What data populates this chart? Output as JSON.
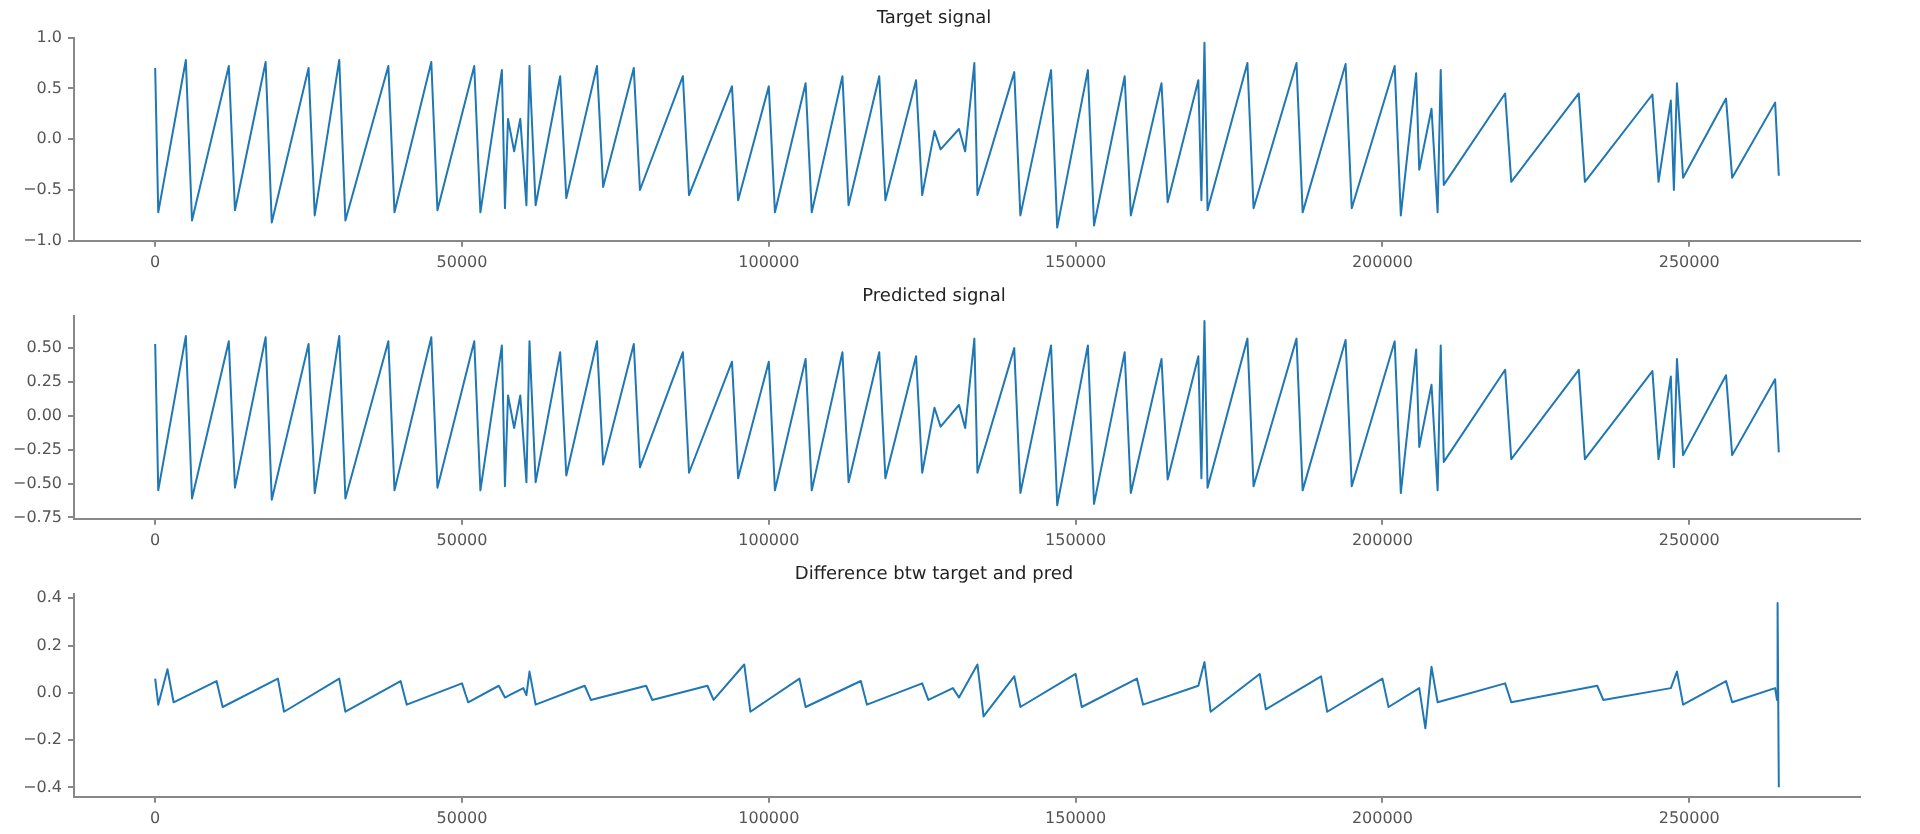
{
  "chart_data": [
    {
      "type": "line",
      "title": "Target signal",
      "color": "#1f77b4",
      "xlim": [
        -13230,
        277830
      ],
      "xticks": [
        0,
        50000,
        100000,
        150000,
        200000,
        250000
      ],
      "ylim": [
        -1.0,
        1.0
      ],
      "yticks": [
        {
          "value": -1.0,
          "label": "−1.0"
        },
        {
          "value": -0.5,
          "label": "−0.5"
        },
        {
          "value": 0,
          "label": "0.0"
        },
        {
          "value": 0.5,
          "label": "0.5"
        },
        {
          "value": 1.0,
          "label": "1.0"
        }
      ],
      "x": [
        0,
        500,
        5000,
        6000,
        12000,
        13000,
        18000,
        19000,
        25000,
        26000,
        30000,
        31000,
        38000,
        39000,
        45000,
        46000,
        52000,
        53000,
        56500,
        57000,
        57500,
        58500,
        59500,
        60500,
        61000,
        62000,
        66000,
        67000,
        72000,
        73000,
        78000,
        79000,
        86000,
        87000,
        94000,
        95000,
        100000,
        101000,
        106000,
        107000,
        112000,
        113000,
        118000,
        119000,
        124000,
        125000,
        127000,
        128000,
        131000,
        132000,
        133500,
        134000,
        140000,
        141000,
        146000,
        147000,
        152000,
        153000,
        158000,
        159000,
        164000,
        165000,
        170000,
        170500,
        171000,
        171500,
        178000,
        179000,
        186000,
        187000,
        194000,
        195000,
        202000,
        203000,
        205500,
        206000,
        208000,
        209000,
        209500,
        210000,
        220000,
        221000,
        232000,
        233000,
        244000,
        245000,
        247000,
        247500,
        248000,
        249000,
        256000,
        257000,
        264000,
        264600
      ],
      "values": [
        0.7,
        -0.72,
        0.78,
        -0.8,
        0.72,
        -0.7,
        0.76,
        -0.82,
        0.7,
        -0.75,
        0.78,
        -0.8,
        0.72,
        -0.72,
        0.76,
        -0.7,
        0.72,
        -0.72,
        0.68,
        -0.68,
        0.2,
        -0.12,
        0.2,
        -0.65,
        0.72,
        -0.65,
        0.62,
        -0.58,
        0.72,
        -0.47,
        0.7,
        -0.5,
        0.62,
        -0.55,
        0.52,
        -0.6,
        0.52,
        -0.72,
        0.55,
        -0.72,
        0.62,
        -0.65,
        0.62,
        -0.6,
        0.58,
        -0.55,
        0.08,
        -0.1,
        0.1,
        -0.12,
        0.75,
        -0.55,
        0.66,
        -0.75,
        0.68,
        -0.87,
        0.68,
        -0.85,
        0.62,
        -0.75,
        0.55,
        -0.62,
        0.58,
        -0.6,
        0.95,
        -0.7,
        0.75,
        -0.68,
        0.75,
        -0.72,
        0.74,
        -0.68,
        0.72,
        -0.75,
        0.65,
        -0.3,
        0.3,
        -0.72,
        0.68,
        -0.45,
        0.45,
        -0.42,
        0.45,
        -0.42,
        0.44,
        -0.42,
        0.38,
        -0.5,
        0.55,
        -0.38,
        0.4,
        -0.38,
        0.36,
        -0.36
      ]
    },
    {
      "type": "line",
      "title": "Predicted signal",
      "color": "#1f77b4",
      "xlim": [
        -13230,
        277830
      ],
      "xticks": [
        0,
        50000,
        100000,
        150000,
        200000,
        250000
      ],
      "ylim": [
        -0.76,
        0.74
      ],
      "yticks": [
        {
          "value": -0.75,
          "label": "−0.75"
        },
        {
          "value": -0.5,
          "label": "−0.50"
        },
        {
          "value": -0.25,
          "label": "−0.25"
        },
        {
          "value": 0,
          "label": "0.00"
        },
        {
          "value": 0.25,
          "label": "0.25"
        },
        {
          "value": 0.5,
          "label": "0.50"
        }
      ],
      "x": [
        0,
        500,
        5000,
        6000,
        12000,
        13000,
        18000,
        19000,
        25000,
        26000,
        30000,
        31000,
        38000,
        39000,
        45000,
        46000,
        52000,
        53000,
        56500,
        57000,
        57500,
        58500,
        59500,
        60500,
        61000,
        62000,
        66000,
        67000,
        72000,
        73000,
        78000,
        79000,
        86000,
        87000,
        94000,
        95000,
        100000,
        101000,
        106000,
        107000,
        112000,
        113000,
        118000,
        119000,
        124000,
        125000,
        127000,
        128000,
        131000,
        132000,
        133500,
        134000,
        140000,
        141000,
        146000,
        147000,
        152000,
        153000,
        158000,
        159000,
        164000,
        165000,
        170000,
        170500,
        171000,
        171500,
        178000,
        179000,
        186000,
        187000,
        194000,
        195000,
        202000,
        203000,
        205500,
        206000,
        208000,
        209000,
        209500,
        210000,
        220000,
        221000,
        232000,
        233000,
        244000,
        245000,
        247000,
        247500,
        248000,
        249000,
        256000,
        257000,
        264000,
        264600
      ],
      "values": [
        0.53,
        -0.55,
        0.59,
        -0.61,
        0.55,
        -0.53,
        0.58,
        -0.62,
        0.53,
        -0.57,
        0.59,
        -0.61,
        0.55,
        -0.55,
        0.58,
        -0.53,
        0.55,
        -0.55,
        0.52,
        -0.52,
        0.15,
        -0.09,
        0.15,
        -0.49,
        0.55,
        -0.49,
        0.47,
        -0.44,
        0.55,
        -0.36,
        0.53,
        -0.38,
        0.47,
        -0.42,
        0.4,
        -0.46,
        0.4,
        -0.55,
        0.42,
        -0.55,
        0.47,
        -0.49,
        0.47,
        -0.46,
        0.44,
        -0.42,
        0.06,
        -0.08,
        0.08,
        -0.09,
        0.57,
        -0.42,
        0.5,
        -0.57,
        0.52,
        -0.66,
        0.52,
        -0.65,
        0.47,
        -0.57,
        0.42,
        -0.47,
        0.44,
        -0.46,
        0.7,
        -0.53,
        0.57,
        -0.52,
        0.57,
        -0.55,
        0.56,
        -0.52,
        0.55,
        -0.57,
        0.49,
        -0.23,
        0.23,
        -0.55,
        0.52,
        -0.34,
        0.34,
        -0.32,
        0.34,
        -0.32,
        0.33,
        -0.32,
        0.29,
        -0.38,
        0.42,
        -0.29,
        0.3,
        -0.29,
        0.27,
        -0.27
      ]
    },
    {
      "type": "line",
      "title": "Difference btw target and pred",
      "color": "#1f77b4",
      "xlim": [
        -13230,
        277830
      ],
      "xticks": [
        0,
        50000,
        100000,
        150000,
        200000,
        250000
      ],
      "ylim": [
        -0.44,
        0.42
      ],
      "yticks": [
        {
          "value": -0.4,
          "label": "−0.4"
        },
        {
          "value": -0.2,
          "label": "−0.2"
        },
        {
          "value": 0,
          "label": "0.0"
        },
        {
          "value": 0.2,
          "label": "0.2"
        },
        {
          "value": 0.4,
          "label": "0.4"
        }
      ],
      "x": [
        0,
        500,
        2000,
        3000,
        10000,
        11000,
        20000,
        21000,
        30000,
        31000,
        40000,
        41000,
        50000,
        51000,
        56000,
        57000,
        60000,
        60500,
        61000,
        62000,
        70000,
        71000,
        80000,
        81000,
        90000,
        91000,
        96000,
        97000,
        105000,
        106000,
        115000,
        116000,
        125000,
        126000,
        130000,
        131000,
        134000,
        135000,
        140000,
        141000,
        150000,
        151000,
        160000,
        161000,
        170000,
        171000,
        172000,
        180000,
        181000,
        190000,
        191000,
        200000,
        201000,
        206000,
        207000,
        208000,
        209000,
        220000,
        221000,
        235000,
        236000,
        247000,
        248000,
        249000,
        256000,
        257000,
        264000,
        264300,
        264400,
        264600
      ],
      "values": [
        0.06,
        -0.05,
        0.1,
        -0.04,
        0.05,
        -0.06,
        0.06,
        -0.08,
        0.06,
        -0.08,
        0.05,
        -0.05,
        0.04,
        -0.04,
        0.03,
        -0.02,
        0.02,
        -0.01,
        0.09,
        -0.05,
        0.03,
        -0.03,
        0.03,
        -0.03,
        0.03,
        -0.03,
        0.12,
        -0.08,
        0.06,
        -0.06,
        0.05,
        -0.05,
        0.04,
        -0.03,
        0.02,
        -0.02,
        0.12,
        -0.1,
        0.07,
        -0.06,
        0.08,
        -0.06,
        0.06,
        -0.05,
        0.03,
        0.13,
        -0.08,
        0.08,
        -0.07,
        0.07,
        -0.08,
        0.06,
        -0.06,
        0.02,
        -0.15,
        0.11,
        -0.04,
        0.04,
        -0.04,
        0.03,
        -0.03,
        0.02,
        0.09,
        -0.05,
        0.05,
        -0.04,
        0.02,
        -0.03,
        0.38,
        -0.4
      ]
    }
  ]
}
